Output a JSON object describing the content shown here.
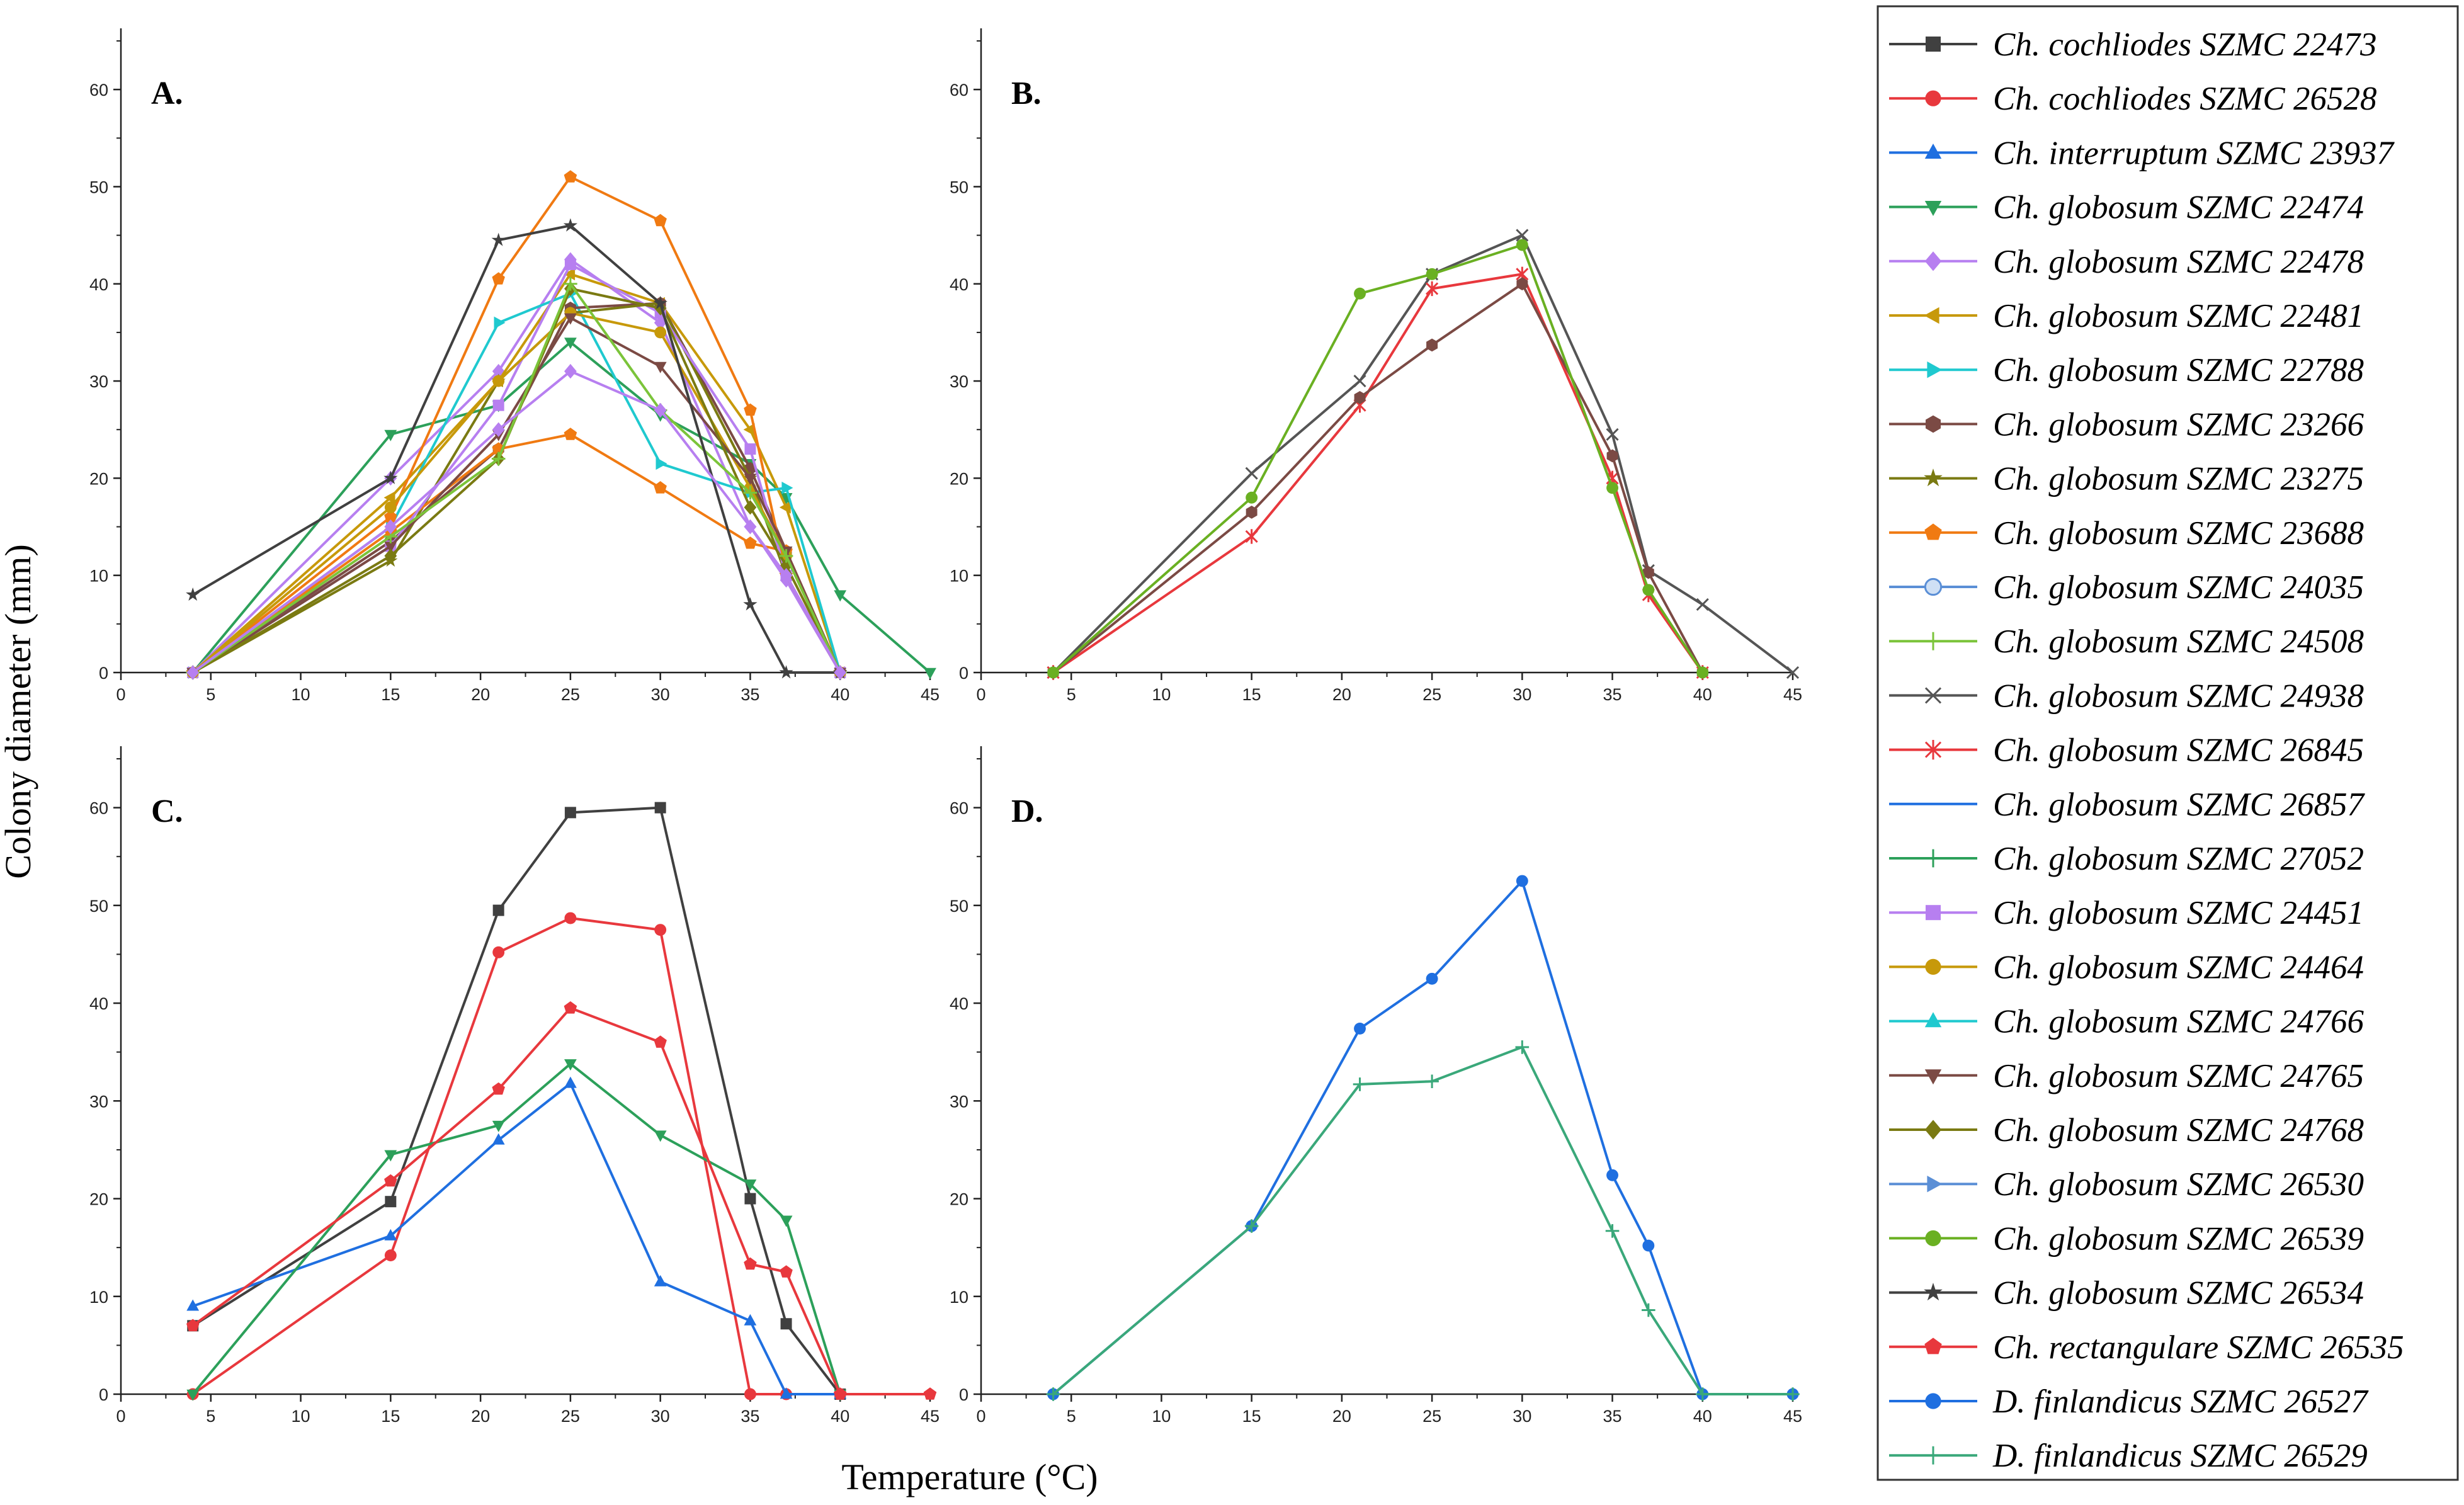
{
  "chart_data": {
    "type": "line",
    "ylabel": "Colony diameter (mm)",
    "xlabel": "Temperature (°C)",
    "series_styles": [
      {
        "name": "Ch. cochliodes SZMC 22473",
        "color": "#404040",
        "marker": "square"
      },
      {
        "name": "Ch. cochliodes SZMC 26528",
        "color": "#e8383d",
        "marker": "circle"
      },
      {
        "name": "Ch. interruptum SZMC 23937",
        "color": "#1f6fe0",
        "marker": "triangle-up"
      },
      {
        "name": "Ch. globosum SZMC 22474",
        "color": "#2ca05a",
        "marker": "triangle-down"
      },
      {
        "name": "Ch. globosum SZMC 22478",
        "color": "#b77ff0",
        "marker": "diamond"
      },
      {
        "name": "Ch. globosum SZMC 22481",
        "color": "#c7990a",
        "marker": "triangle-left"
      },
      {
        "name": "Ch. globosum SZMC 22788",
        "color": "#1fc9cf",
        "marker": "triangle-right"
      },
      {
        "name": "Ch. globosum SZMC 23266",
        "color": "#7b4a44",
        "marker": "hexagon"
      },
      {
        "name": "Ch. globosum SZMC 23275",
        "color": "#7a7a12",
        "marker": "star"
      },
      {
        "name": "Ch. globosum SZMC 23688",
        "color": "#f07a12",
        "marker": "pentagon"
      },
      {
        "name": "Ch. globosum SZMC 24035",
        "color": "#5b8fd6",
        "marker": "circle-half"
      },
      {
        "name": "Ch. globosum SZMC 24508",
        "color": "#7bc43a",
        "marker": "plus"
      },
      {
        "name": "Ch. globosum SZMC 24938",
        "color": "#555555",
        "marker": "x"
      },
      {
        "name": "Ch. globosum SZMC 26845",
        "color": "#e8383d",
        "marker": "asterisk"
      },
      {
        "name": "Ch. globosum SZMC 26857",
        "color": "#1f6fe0",
        "marker": "dash"
      },
      {
        "name": "Ch. globosum SZMC 27052",
        "color": "#2ca05a",
        "marker": "plus"
      },
      {
        "name": "Ch. globosum SZMC 24451",
        "color": "#b77ff0",
        "marker": "square"
      },
      {
        "name": "Ch. globosum SZMC 24464",
        "color": "#c7990a",
        "marker": "circle"
      },
      {
        "name": "Ch. globosum SZMC 24766",
        "color": "#1fc9cf",
        "marker": "triangle-up"
      },
      {
        "name": "Ch. globosum SZMC 24765",
        "color": "#7b4a44",
        "marker": "triangle-down"
      },
      {
        "name": "Ch. globosum SZMC 24768",
        "color": "#7a7a12",
        "marker": "diamond"
      },
      {
        "name": "Ch. globosum SZMC 26530",
        "color": "#5b8fd6",
        "marker": "triangle-right"
      },
      {
        "name": "Ch. globosum SZMC 26539",
        "color": "#6ab022",
        "marker": "circle"
      },
      {
        "name": "Ch. globosum SZMC 26534",
        "color": "#404040",
        "marker": "star"
      },
      {
        "name": "Ch. rectangulare SZMC 26535",
        "color": "#e8383d",
        "marker": "pentagon"
      },
      {
        "name": "D. finlandicus SZMC 26527",
        "color": "#1f6fe0",
        "marker": "circle"
      },
      {
        "name": "D. finlandicus  SZMC 26529",
        "color": "#3aa87a",
        "marker": "plus"
      }
    ],
    "panels": [
      {
        "label": "A.",
        "xlim": [
          0,
          45
        ],
        "ylim": [
          0,
          65
        ],
        "xticks": [
          0,
          5,
          10,
          15,
          20,
          25,
          30,
          35,
          40,
          45
        ],
        "yticks": [
          0,
          10,
          20,
          30,
          40,
          50,
          60
        ],
        "series": [
          {
            "style": 3,
            "x": [
              4,
              15,
              21,
              25,
              30,
              35,
              37,
              40,
              45
            ],
            "y": [
              0,
              24.5,
              27.5,
              34,
              26.5,
              21.5,
              18,
              8,
              0
            ]
          },
          {
            "style": 4,
            "x": [
              4,
              15,
              21,
              25,
              30,
              35,
              37,
              40
            ],
            "y": [
              0,
              20,
              31,
              42.5,
              36,
              15,
              9.5,
              0
            ]
          },
          {
            "style": 5,
            "x": [
              4,
              15,
              21,
              25,
              30,
              35,
              37,
              40
            ],
            "y": [
              0,
              18,
              30,
              41,
              38,
              25,
              17,
              0
            ]
          },
          {
            "style": 6,
            "x": [
              4,
              15,
              21,
              25,
              30,
              35,
              37,
              40
            ],
            "y": [
              0,
              15,
              36,
              39,
              21.5,
              18.5,
              19,
              0
            ]
          },
          {
            "style": 7,
            "x": [
              4,
              15,
              21,
              25,
              30,
              35,
              37,
              40
            ],
            "y": [
              0,
              13.5,
              23,
              37.5,
              38,
              21,
              12.5,
              0
            ]
          },
          {
            "style": 8,
            "x": [
              4,
              15,
              21,
              25,
              30,
              35,
              37,
              40
            ],
            "y": [
              0,
              11.5,
              30,
              37,
              38,
              20,
              10,
              0
            ]
          },
          {
            "style": 9,
            "x": [
              4,
              15,
              21,
              25,
              30,
              35,
              37,
              40
            ],
            "y": [
              0,
              16,
              40.5,
              51,
              46.5,
              27,
              10,
              0
            ]
          },
          {
            "style": 9,
            "x": [
              4,
              15,
              21,
              25,
              30,
              35,
              37,
              40
            ],
            "y": [
              0,
              14.5,
              23,
              24.5,
              19,
              13.3,
              12.5,
              0
            ]
          },
          {
            "style": 16,
            "x": [
              4,
              15,
              21,
              25,
              30,
              35,
              37,
              40
            ],
            "y": [
              0,
              13,
              27.5,
              42,
              37,
              23,
              10,
              0
            ]
          },
          {
            "style": 17,
            "x": [
              4,
              15,
              21,
              25,
              30,
              35,
              37,
              40
            ],
            "y": [
              0,
              17,
              30,
              37,
              35,
              19,
              12,
              0
            ]
          },
          {
            "style": 19,
            "x": [
              4,
              15,
              21,
              25,
              30,
              35,
              37,
              40
            ],
            "y": [
              0,
              13,
              24.5,
              36.5,
              31.5,
              20,
              12.5,
              0
            ]
          },
          {
            "style": 20,
            "x": [
              4,
              15,
              21,
              25,
              30,
              35,
              37,
              40
            ],
            "y": [
              0,
              12,
              22,
              39.5,
              37.5,
              17,
              11,
              0
            ]
          },
          {
            "style": 11,
            "x": [
              4,
              15,
              21,
              25,
              30,
              35,
              37,
              40
            ],
            "y": [
              0,
              14,
              22,
              40,
              27,
              18.5,
              12,
              0
            ]
          },
          {
            "style": 23,
            "x": [
              4,
              15,
              21,
              25,
              30,
              35,
              37,
              40
            ],
            "y": [
              8,
              20,
              44.5,
              46,
              38,
              7,
              0,
              0
            ]
          },
          {
            "style": 4,
            "x": [
              4,
              15,
              21,
              25,
              30,
              35,
              37,
              40
            ],
            "y": [
              0,
              15,
              25,
              31,
              27,
              15,
              10,
              0
            ]
          }
        ]
      },
      {
        "label": "B.",
        "xlim": [
          0,
          45
        ],
        "ylim": [
          0,
          65
        ],
        "xticks": [
          0,
          5,
          10,
          15,
          20,
          25,
          30,
          35,
          40,
          45
        ],
        "yticks": [
          0,
          10,
          20,
          30,
          40,
          50,
          60
        ],
        "series": [
          {
            "style": 12,
            "x": [
              4,
              15,
              21,
              25,
              30,
              35,
              37,
              40,
              45
            ],
            "y": [
              0,
              20.5,
              30,
              41,
              45,
              24.5,
              10.5,
              7,
              0
            ]
          },
          {
            "style": 13,
            "x": [
              4,
              15,
              21,
              25,
              30,
              35,
              37,
              40
            ],
            "y": [
              0,
              14,
              27.5,
              39.5,
              41,
              20,
              8,
              0
            ]
          },
          {
            "style": 7,
            "x": [
              4,
              15,
              21,
              25,
              30,
              35,
              37,
              40
            ],
            "y": [
              0,
              16.5,
              28.3,
              33.7,
              40,
              22.3,
              10.3,
              0
            ]
          },
          {
            "style": 22,
            "x": [
              4,
              15,
              21,
              25,
              30,
              35,
              37,
              40
            ],
            "y": [
              0,
              18,
              39,
              41,
              44,
              19,
              8.5,
              0
            ]
          }
        ]
      },
      {
        "label": "C.",
        "xlim": [
          0,
          45
        ],
        "ylim": [
          0,
          65
        ],
        "xticks": [
          0,
          5,
          10,
          15,
          20,
          25,
          30,
          35,
          40,
          45
        ],
        "yticks": [
          0,
          10,
          20,
          30,
          40,
          50,
          60
        ],
        "series": [
          {
            "style": 0,
            "x": [
              4,
              15,
              21,
              25,
              30,
              35,
              37,
              40
            ],
            "y": [
              7,
              19.7,
              49.5,
              59.5,
              60,
              20,
              7.2,
              0
            ]
          },
          {
            "style": 1,
            "x": [
              4,
              15,
              21,
              25,
              30,
              35,
              37,
              40
            ],
            "y": [
              0,
              14.2,
              45.2,
              48.7,
              47.5,
              0,
              0,
              0
            ]
          },
          {
            "style": 2,
            "x": [
              4,
              15,
              21,
              25,
              30,
              35,
              37,
              40
            ],
            "y": [
              9,
              16.2,
              26,
              31.8,
              11.5,
              7.5,
              0,
              0
            ]
          },
          {
            "style": 3,
            "x": [
              4,
              15,
              21,
              25,
              30,
              35,
              37,
              40
            ],
            "y": [
              0,
              24.5,
              27.5,
              33.8,
              26.5,
              21.5,
              17.8,
              0
            ]
          },
          {
            "style": 24,
            "x": [
              4,
              15,
              21,
              25,
              30,
              35,
              37,
              40,
              45
            ],
            "y": [
              7,
              21.8,
              31.2,
              39.5,
              36,
              13.3,
              12.5,
              0,
              0
            ]
          }
        ]
      },
      {
        "label": "D.",
        "xlim": [
          0,
          45
        ],
        "ylim": [
          0,
          65
        ],
        "xticks": [
          0,
          5,
          10,
          15,
          20,
          25,
          30,
          35,
          40,
          45
        ],
        "yticks": [
          0,
          10,
          20,
          30,
          40,
          50,
          60
        ],
        "series": [
          {
            "style": 25,
            "x": [
              4,
              15,
              21,
              25,
              30,
              35,
              37,
              40,
              45
            ],
            "y": [
              0,
              17.2,
              37.4,
              42.5,
              52.5,
              22.4,
              15.2,
              0,
              0
            ]
          },
          {
            "style": 26,
            "x": [
              4,
              15,
              21,
              25,
              30,
              35,
              37,
              40,
              45
            ],
            "y": [
              0,
              17.2,
              31.7,
              32,
              35.5,
              16.7,
              8.6,
              0,
              0
            ]
          }
        ]
      }
    ]
  }
}
